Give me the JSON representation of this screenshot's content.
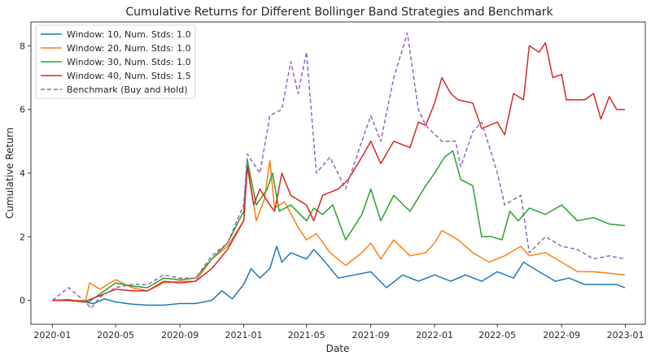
{
  "chart_data": {
    "type": "line",
    "title": "Cumulative Returns for Different Bollinger Band Strategies and Benchmark",
    "xlabel": "Date",
    "ylabel": "Cumulative Return",
    "x_range": [
      "2019-11-21",
      "2023-02-08"
    ],
    "ylim": [
      -0.75,
      8.75
    ],
    "x_ticks": [
      "2020-01",
      "2020-05",
      "2020-09",
      "2021-01",
      "2021-05",
      "2021-09",
      "2022-01",
      "2022-05",
      "2022-09",
      "2023-01"
    ],
    "y_ticks": [
      0,
      2,
      4,
      6,
      8
    ],
    "grid": false,
    "legend_position": "top-left",
    "series": [
      {
        "name": "Window: 10, Num. Stds: 1.0",
        "color": "#1f77b4",
        "dash": "solid",
        "points": [
          [
            "2020-01-01",
            0.0
          ],
          [
            "2020-02-01",
            0.02
          ],
          [
            "2020-03-01",
            -0.05
          ],
          [
            "2020-03-20",
            -0.1
          ],
          [
            "2020-04-10",
            0.05
          ],
          [
            "2020-05-01",
            -0.05
          ],
          [
            "2020-06-01",
            -0.12
          ],
          [
            "2020-07-01",
            -0.15
          ],
          [
            "2020-08-01",
            -0.15
          ],
          [
            "2020-09-01",
            -0.1
          ],
          [
            "2020-10-01",
            -0.1
          ],
          [
            "2020-11-01",
            0.0
          ],
          [
            "2020-11-20",
            0.3
          ],
          [
            "2020-12-10",
            0.05
          ],
          [
            "2021-01-01",
            0.5
          ],
          [
            "2021-01-15",
            1.0
          ],
          [
            "2021-02-01",
            0.7
          ],
          [
            "2021-02-20",
            1.0
          ],
          [
            "2021-03-05",
            1.7
          ],
          [
            "2021-03-15",
            1.2
          ],
          [
            "2021-04-01",
            1.5
          ],
          [
            "2021-05-01",
            1.3
          ],
          [
            "2021-05-15",
            1.6
          ],
          [
            "2021-06-01",
            1.3
          ],
          [
            "2021-07-01",
            0.7
          ],
          [
            "2021-08-01",
            0.8
          ],
          [
            "2021-09-01",
            0.9
          ],
          [
            "2021-10-01",
            0.4
          ],
          [
            "2021-11-01",
            0.8
          ],
          [
            "2021-12-01",
            0.6
          ],
          [
            "2022-01-01",
            0.8
          ],
          [
            "2022-02-01",
            0.6
          ],
          [
            "2022-03-01",
            0.8
          ],
          [
            "2022-04-01",
            0.6
          ],
          [
            "2022-05-01",
            0.9
          ],
          [
            "2022-06-01",
            0.7
          ],
          [
            "2022-06-20",
            1.2
          ],
          [
            "2022-07-20",
            0.9
          ],
          [
            "2022-08-20",
            0.6
          ],
          [
            "2022-09-15",
            0.7
          ],
          [
            "2022-10-15",
            0.5
          ],
          [
            "2022-11-15",
            0.5
          ],
          [
            "2022-12-15",
            0.5
          ],
          [
            "2022-12-31",
            0.4
          ]
        ]
      },
      {
        "name": "Window: 20, Num. Stds: 1.0",
        "color": "#ff7f0e",
        "dash": "solid",
        "points": [
          [
            "2020-01-01",
            0.0
          ],
          [
            "2020-02-01",
            0.0
          ],
          [
            "2020-03-05",
            0.0
          ],
          [
            "2020-03-12",
            0.55
          ],
          [
            "2020-04-01",
            0.35
          ],
          [
            "2020-05-01",
            0.65
          ],
          [
            "2020-06-01",
            0.4
          ],
          [
            "2020-07-01",
            0.3
          ],
          [
            "2020-08-01",
            0.55
          ],
          [
            "2020-09-01",
            0.6
          ],
          [
            "2020-10-01",
            0.6
          ],
          [
            "2020-11-01",
            1.3
          ],
          [
            "2020-12-01",
            1.7
          ],
          [
            "2021-01-01",
            2.5
          ],
          [
            "2021-01-08",
            4.3
          ],
          [
            "2021-01-25",
            2.5
          ],
          [
            "2021-02-10",
            3.2
          ],
          [
            "2021-02-20",
            4.4
          ],
          [
            "2021-03-01",
            2.9
          ],
          [
            "2021-03-20",
            3.1
          ],
          [
            "2021-04-15",
            2.3
          ],
          [
            "2021-05-01",
            1.9
          ],
          [
            "2021-05-20",
            2.1
          ],
          [
            "2021-06-15",
            1.5
          ],
          [
            "2021-07-15",
            1.1
          ],
          [
            "2021-08-15",
            1.5
          ],
          [
            "2021-09-01",
            1.8
          ],
          [
            "2021-09-20",
            1.3
          ],
          [
            "2021-10-15",
            1.9
          ],
          [
            "2021-11-15",
            1.4
          ],
          [
            "2021-12-15",
            1.5
          ],
          [
            "2022-01-01",
            1.8
          ],
          [
            "2022-01-15",
            2.2
          ],
          [
            "2022-02-15",
            1.9
          ],
          [
            "2022-03-15",
            1.5
          ],
          [
            "2022-04-15",
            1.2
          ],
          [
            "2022-05-15",
            1.4
          ],
          [
            "2022-06-15",
            1.7
          ],
          [
            "2022-07-01",
            1.4
          ],
          [
            "2022-08-01",
            1.5
          ],
          [
            "2022-09-01",
            1.2
          ],
          [
            "2022-10-01",
            0.9
          ],
          [
            "2022-11-01",
            0.9
          ],
          [
            "2022-12-01",
            0.85
          ],
          [
            "2022-12-31",
            0.8
          ]
        ]
      },
      {
        "name": "Window: 30, Num. Stds: 1.0",
        "color": "#2ca02c",
        "dash": "solid",
        "points": [
          [
            "2020-01-01",
            0.0
          ],
          [
            "2020-02-01",
            0.0
          ],
          [
            "2020-03-10",
            -0.05
          ],
          [
            "2020-04-01",
            0.2
          ],
          [
            "2020-05-01",
            0.55
          ],
          [
            "2020-06-01",
            0.45
          ],
          [
            "2020-07-01",
            0.4
          ],
          [
            "2020-08-01",
            0.7
          ],
          [
            "2020-09-01",
            0.65
          ],
          [
            "2020-10-01",
            0.7
          ],
          [
            "2020-11-01",
            1.3
          ],
          [
            "2020-12-01",
            1.8
          ],
          [
            "2021-01-01",
            2.8
          ],
          [
            "2021-01-08",
            4.4
          ],
          [
            "2021-01-25",
            3.0
          ],
          [
            "2021-02-15",
            3.5
          ],
          [
            "2021-02-25",
            4.0
          ],
          [
            "2021-03-10",
            2.8
          ],
          [
            "2021-04-01",
            3.0
          ],
          [
            "2021-05-01",
            2.5
          ],
          [
            "2021-05-15",
            2.9
          ],
          [
            "2021-06-01",
            2.7
          ],
          [
            "2021-06-20",
            3.0
          ],
          [
            "2021-07-15",
            1.9
          ],
          [
            "2021-08-15",
            2.7
          ],
          [
            "2021-09-01",
            3.5
          ],
          [
            "2021-09-20",
            2.5
          ],
          [
            "2021-10-15",
            3.3
          ],
          [
            "2021-11-15",
            2.8
          ],
          [
            "2021-12-15",
            3.6
          ],
          [
            "2022-01-01",
            4.0
          ],
          [
            "2022-01-20",
            4.5
          ],
          [
            "2022-02-05",
            4.7
          ],
          [
            "2022-02-20",
            3.8
          ],
          [
            "2022-03-15",
            3.6
          ],
          [
            "2022-04-01",
            2.0
          ],
          [
            "2022-04-20",
            2.0
          ],
          [
            "2022-05-10",
            1.9
          ],
          [
            "2022-05-25",
            2.8
          ],
          [
            "2022-06-10",
            2.5
          ],
          [
            "2022-07-01",
            2.9
          ],
          [
            "2022-08-01",
            2.7
          ],
          [
            "2022-09-01",
            3.0
          ],
          [
            "2022-10-01",
            2.5
          ],
          [
            "2022-11-01",
            2.6
          ],
          [
            "2022-12-01",
            2.4
          ],
          [
            "2022-12-31",
            2.35
          ]
        ]
      },
      {
        "name": "Window: 40, Num. Stds: 1.5",
        "color": "#d62728",
        "dash": "solid",
        "points": [
          [
            "2020-01-01",
            0.0
          ],
          [
            "2020-02-01",
            0.0
          ],
          [
            "2020-03-01",
            -0.05
          ],
          [
            "2020-04-01",
            0.15
          ],
          [
            "2020-05-01",
            0.35
          ],
          [
            "2020-06-01",
            0.3
          ],
          [
            "2020-07-01",
            0.3
          ],
          [
            "2020-08-01",
            0.6
          ],
          [
            "2020-09-01",
            0.55
          ],
          [
            "2020-10-01",
            0.6
          ],
          [
            "2020-11-01",
            1.0
          ],
          [
            "2020-12-01",
            1.6
          ],
          [
            "2021-01-01",
            2.5
          ],
          [
            "2021-01-08",
            4.2
          ],
          [
            "2021-01-20",
            3.0
          ],
          [
            "2021-02-01",
            3.5
          ],
          [
            "2021-02-20",
            3.0
          ],
          [
            "2021-03-01",
            2.8
          ],
          [
            "2021-03-15",
            4.0
          ],
          [
            "2021-04-01",
            3.3
          ],
          [
            "2021-05-01",
            3.0
          ],
          [
            "2021-05-15",
            2.5
          ],
          [
            "2021-06-01",
            3.3
          ],
          [
            "2021-07-01",
            3.5
          ],
          [
            "2021-07-20",
            3.8
          ],
          [
            "2021-08-15",
            4.5
          ],
          [
            "2021-09-01",
            5.0
          ],
          [
            "2021-09-20",
            4.3
          ],
          [
            "2021-10-15",
            5.0
          ],
          [
            "2021-11-15",
            4.8
          ],
          [
            "2021-12-01",
            5.6
          ],
          [
            "2021-12-15",
            5.5
          ],
          [
            "2022-01-01",
            6.2
          ],
          [
            "2022-01-15",
            7.0
          ],
          [
            "2022-02-01",
            6.5
          ],
          [
            "2022-02-15",
            6.3
          ],
          [
            "2022-03-15",
            6.2
          ],
          [
            "2022-04-01",
            5.4
          ],
          [
            "2022-05-01",
            5.6
          ],
          [
            "2022-05-15",
            5.2
          ],
          [
            "2022-06-01",
            6.5
          ],
          [
            "2022-06-20",
            6.3
          ],
          [
            "2022-07-01",
            8.0
          ],
          [
            "2022-07-20",
            7.8
          ],
          [
            "2022-08-01",
            8.1
          ],
          [
            "2022-08-15",
            7.0
          ],
          [
            "2022-09-01",
            7.1
          ],
          [
            "2022-09-10",
            6.3
          ],
          [
            "2022-10-15",
            6.3
          ],
          [
            "2022-11-01",
            6.5
          ],
          [
            "2022-11-15",
            5.7
          ],
          [
            "2022-12-01",
            6.4
          ],
          [
            "2022-12-15",
            6.0
          ],
          [
            "2022-12-31",
            6.0
          ]
        ]
      },
      {
        "name": "Benchmark (Buy and Hold)",
        "color": "#9467bd",
        "dash": "dashed",
        "points": [
          [
            "2020-01-01",
            0.0
          ],
          [
            "2020-02-01",
            0.4
          ],
          [
            "2020-03-01",
            0.0
          ],
          [
            "2020-03-15",
            -0.25
          ],
          [
            "2020-04-01",
            0.1
          ],
          [
            "2020-05-01",
            0.4
          ],
          [
            "2020-06-01",
            0.5
          ],
          [
            "2020-07-01",
            0.5
          ],
          [
            "2020-08-01",
            0.8
          ],
          [
            "2020-09-01",
            0.7
          ],
          [
            "2020-10-01",
            0.7
          ],
          [
            "2020-11-01",
            1.4
          ],
          [
            "2020-12-01",
            1.8
          ],
          [
            "2021-01-01",
            3.0
          ],
          [
            "2021-01-08",
            4.6
          ],
          [
            "2021-02-01",
            4.0
          ],
          [
            "2021-02-20",
            5.8
          ],
          [
            "2021-03-15",
            6.0
          ],
          [
            "2021-04-01",
            7.5
          ],
          [
            "2021-04-15",
            6.5
          ],
          [
            "2021-05-01",
            7.8
          ],
          [
            "2021-05-20",
            4.0
          ],
          [
            "2021-06-15",
            4.5
          ],
          [
            "2021-07-15",
            3.5
          ],
          [
            "2021-08-15",
            5.0
          ],
          [
            "2021-09-01",
            5.8
          ],
          [
            "2021-09-20",
            5.0
          ],
          [
            "2021-10-15",
            7.0
          ],
          [
            "2021-11-10",
            8.4
          ],
          [
            "2021-12-01",
            6.0
          ],
          [
            "2021-12-15",
            5.5
          ],
          [
            "2022-01-15",
            5.0
          ],
          [
            "2022-02-10",
            5.0
          ],
          [
            "2022-02-20",
            4.2
          ],
          [
            "2022-03-15",
            5.3
          ],
          [
            "2022-04-01",
            5.6
          ],
          [
            "2022-05-01",
            4.0
          ],
          [
            "2022-05-15",
            3.0
          ],
          [
            "2022-06-15",
            3.3
          ],
          [
            "2022-07-01",
            1.5
          ],
          [
            "2022-08-01",
            2.0
          ],
          [
            "2022-09-01",
            1.7
          ],
          [
            "2022-10-01",
            1.6
          ],
          [
            "2022-11-01",
            1.3
          ],
          [
            "2022-12-01",
            1.4
          ],
          [
            "2022-12-31",
            1.3
          ]
        ]
      }
    ]
  }
}
